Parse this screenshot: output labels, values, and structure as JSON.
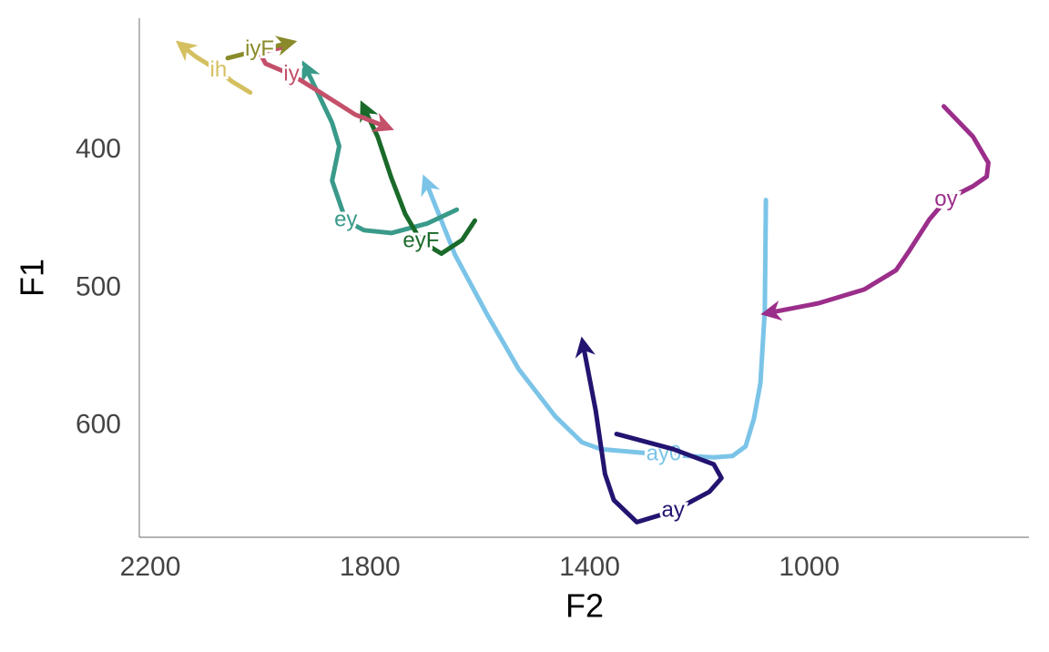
{
  "chart_data": {
    "type": "line",
    "x_label": "F2",
    "y_label": "F1",
    "xlim": [
      2220,
      600
    ],
    "ylim": [
      681,
      304
    ],
    "xticks": [
      2200,
      1800,
      1400,
      1000
    ],
    "yticks": [
      400,
      500,
      600
    ],
    "grid": false,
    "arrows": true,
    "series": [
      {
        "name": "ay0",
        "color": "#7bc4e8",
        "x": [
          1079,
          1081,
          1089,
          1101,
          1116,
          1140,
          1174,
          1265,
          1380,
          1414,
          1463,
          1529,
          1587,
          1645,
          1698
        ],
        "y": [
          436,
          516,
          569,
          595,
          615,
          622,
          623,
          621,
          617,
          612,
          593,
          559,
          519,
          476,
          423
        ]
      },
      {
        "name": "ay",
        "color": "#221470",
        "x": [
          1351,
          1248,
          1174,
          1160,
          1182,
          1248,
          1314,
          1356,
          1372,
          1389,
          1412
        ],
        "y": [
          606,
          617,
          628,
          638,
          648,
          662,
          670,
          654,
          635,
          589,
          541
        ]
      },
      {
        "name": "oy",
        "color": "#9b2e8a",
        "x": [
          755,
          702,
          674,
          677,
          702,
          751,
          781,
          818,
          842,
          900,
          983,
          1074
        ],
        "y": [
          368,
          390,
          409,
          419,
          426,
          436,
          450,
          473,
          487,
          501,
          511,
          518
        ]
      },
      {
        "name": "ey",
        "color": "#3a9a8a",
        "x": [
          1642,
          1695,
          1761,
          1811,
          1844,
          1869,
          1856,
          1869,
          1894,
          1917
        ],
        "y": [
          443,
          453,
          460,
          458,
          451,
          422,
          397,
          380,
          359,
          340
        ]
      },
      {
        "name": "eyF",
        "color": "#1a6a2a",
        "x": [
          1609,
          1632,
          1670,
          1707,
          1736,
          1761,
          1786,
          1811
        ],
        "y": [
          451,
          465,
          475,
          466,
          446,
          420,
          390,
          369
        ]
      },
      {
        "name": "iy",
        "color": "#c4506a",
        "x": [
          1957,
          2001,
          1990,
          1943,
          1894,
          1827,
          1770
        ],
        "y": [
          325,
          329,
          337,
          345,
          357,
          374,
          383
        ]
      },
      {
        "name": "iyF",
        "color": "#8a8a2a",
        "x": [
          2059,
          2001,
          1947
        ],
        "y": [
          333,
          327,
          322
        ]
      },
      {
        "name": "ih",
        "color": "#d4c060",
        "x": [
          2018,
          2051,
          2076,
          2117,
          2142
        ],
        "y": [
          358,
          350,
          342,
          332,
          324
        ]
      }
    ]
  }
}
